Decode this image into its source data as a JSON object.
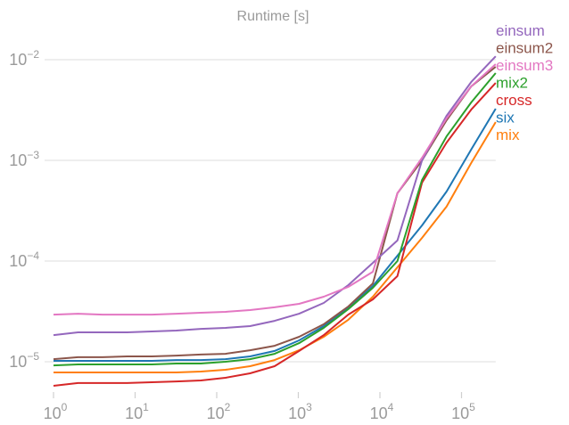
{
  "chart_data": {
    "type": "line",
    "title": "Runtime [s]",
    "xlabel": "",
    "ylabel": "",
    "xscale": "log",
    "yscale": "log",
    "xlim": [
      1,
      262144
    ],
    "ylim": [
      5.5e-06,
      0.026
    ],
    "grid": "horizontal",
    "legend_placement": "right, at line ends",
    "x": [
      1,
      2,
      4,
      8,
      16,
      32,
      64,
      128,
      256,
      512,
      1024,
      2048,
      4096,
      8192,
      16384,
      32768,
      65536,
      131072,
      262144
    ],
    "xticks": [
      {
        "value": 1,
        "base": "10",
        "exp": "0"
      },
      {
        "value": 10,
        "base": "10",
        "exp": "1"
      },
      {
        "value": 100,
        "base": "10",
        "exp": "2"
      },
      {
        "value": 1000,
        "base": "10",
        "exp": "3"
      },
      {
        "value": 10000,
        "base": "10",
        "exp": "4"
      },
      {
        "value": 100000,
        "base": "10",
        "exp": "5"
      }
    ],
    "yticks": [
      {
        "value": 0.01,
        "base": "10",
        "exp": "−2"
      },
      {
        "value": 0.001,
        "base": "10",
        "exp": "−3"
      },
      {
        "value": 0.0001,
        "base": "10",
        "exp": "−4"
      },
      {
        "value": 1e-05,
        "base": "10",
        "exp": "−5"
      }
    ],
    "series": [
      {
        "name": "einsum",
        "color": "#9467bd",
        "values": [
          1.84e-05,
          1.96e-05,
          1.96e-05,
          1.96e-05,
          2e-05,
          2.04e-05,
          2.12e-05,
          2.17e-05,
          2.26e-05,
          2.55e-05,
          3e-05,
          3.84e-05,
          5.77e-05,
          9.6e-05,
          0.00016,
          0.001,
          0.00277,
          0.006,
          0.0108
        ]
      },
      {
        "name": "einsum2",
        "color": "#8c564b",
        "values": [
          1.06e-05,
          1.11e-05,
          1.11e-05,
          1.13e-05,
          1.13e-05,
          1.15e-05,
          1.18e-05,
          1.2e-05,
          1.3e-05,
          1.44e-05,
          1.77e-05,
          2.36e-05,
          3.54e-05,
          6e-05,
          0.000471,
          0.001,
          0.0025,
          0.00543,
          0.00849
        ]
      },
      {
        "name": "einsum3",
        "color": "#e377c2",
        "values": [
          2.94e-05,
          3e-05,
          2.94e-05,
          2.94e-05,
          2.94e-05,
          3e-05,
          3.07e-05,
          3.13e-05,
          3.26e-05,
          3.47e-05,
          3.76e-05,
          4.43e-05,
          5.54e-05,
          7.83e-05,
          0.000471,
          0.00106,
          0.00261,
          0.00543,
          0.00903
        ]
      },
      {
        "name": "mix2",
        "color": "#2ca02c",
        "values": [
          9.2e-06,
          9.4e-06,
          9.4e-06,
          9.4e-06,
          9.4e-06,
          9.6e-06,
          9.6e-06,
          1e-05,
          1.06e-05,
          1.2e-05,
          1.53e-05,
          2.17e-05,
          3.33e-05,
          5.43e-05,
          0.0001,
          0.000639,
          0.00173,
          0.00376,
          0.00737
        ]
      },
      {
        "name": "cross",
        "color": "#d62728",
        "values": [
          5.77e-06,
          6.14e-06,
          6.14e-06,
          6.14e-06,
          6.26e-06,
          6.38e-06,
          6.52e-06,
          6.93e-06,
          7.67e-06,
          9.04e-06,
          1.28e-05,
          1.84e-05,
          2.94e-05,
          4.16e-05,
          7.08e-05,
          0.000601,
          0.0015,
          0.00319,
          0.00588
        ]
      },
      {
        "name": "six",
        "color": "#1f77b4",
        "values": [
          1.02e-05,
          1.02e-05,
          1.02e-05,
          1.02e-05,
          1.02e-05,
          1.04e-05,
          1.04e-05,
          1.06e-05,
          1.13e-05,
          1.28e-05,
          1.63e-05,
          2.26e-05,
          3.4e-05,
          5.65e-05,
          0.000113,
          0.000226,
          0.00049,
          0.00128,
          0.00326
        ]
      },
      {
        "name": "mix",
        "color": "#ff7f0e",
        "values": [
          7.83e-06,
          7.83e-06,
          7.83e-06,
          7.83e-06,
          7.83e-06,
          7.83e-06,
          7.99e-06,
          8.32e-06,
          9.04e-06,
          1.04e-05,
          1.3e-05,
          1.77e-05,
          2.61e-05,
          4.43e-05,
          8.67e-05,
          0.00017,
          0.000347,
          0.00094,
          0.0024
        ]
      }
    ]
  }
}
